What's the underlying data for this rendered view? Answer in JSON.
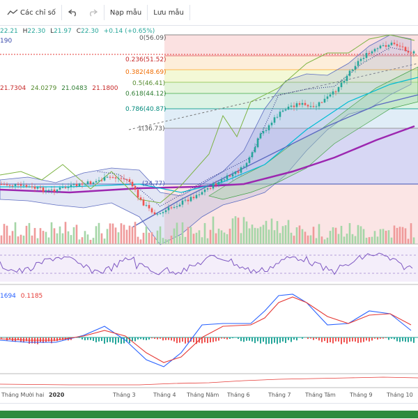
{
  "toolbar": {
    "indicators_label": "Các chỉ số",
    "templates_label": "Nạp mẫu",
    "save_label": "Lưu mẫu"
  },
  "ohlc": {
    "open": "22.21",
    "high_label": "H",
    "high": "22.30",
    "low_label": "L",
    "low": "21.97",
    "close_label": "C",
    "close": "22.30",
    "change": "+0.14 (+0.65%)"
  },
  "overlay_value": "190",
  "ma_values": [
    "21.7304",
    "24.0279",
    "21.0483",
    "21.1800"
  ],
  "macd_values": [
    "1694",
    "0.1185"
  ],
  "fib_levels": [
    {
      "label": "0(56.09)"
    },
    {
      "label": "0.236(51.52)"
    },
    {
      "label": "0.382(48.69)"
    },
    {
      "label": "0.5(46.41)"
    },
    {
      "label": "0.618(44.12)"
    },
    {
      "label": "0.786(40.87)"
    },
    {
      "label": "1(36.73)"
    },
    {
      "label": "(24.77)"
    }
  ],
  "x_axis": [
    "Tháng Mười hai",
    "2020",
    "Tháng 3",
    "Tháng 4",
    "Tháng Năm",
    "Tháng 6",
    "Tháng 7",
    "Tháng Tám",
    "Tháng 9",
    "Tháng 10"
  ],
  "colors": {
    "up": "#26a69a",
    "down": "#ef5350",
    "ma_purple": "#9c27b0",
    "macd_blue": "#2962ff",
    "signal_red": "#e53935",
    "rsi_purple": "#7e57c2",
    "brand_green": "#2e8b3d"
  },
  "icons": {
    "indicators": "trend-line-icon",
    "undo": "undo-icon",
    "redo": "redo-icon"
  }
}
